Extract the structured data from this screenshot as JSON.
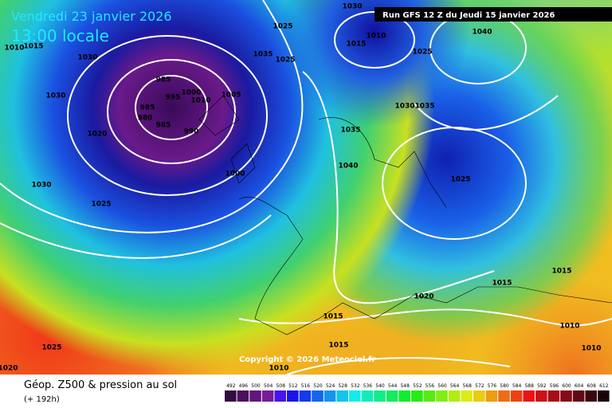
{
  "header": {
    "date": "Vendredi 23 janvier 2026",
    "local_time": "13:00 locale",
    "run": "Run GFS 12 Z du Jeudi 15 janvier 2026",
    "copyright": "Copyright © 2026 Meteociel.fr"
  },
  "footer": {
    "title": "Géop. Z500 & pression au sol",
    "lead": "(+ 192h)"
  },
  "legend": {
    "values": [
      492,
      496,
      500,
      504,
      508,
      512,
      516,
      520,
      524,
      528,
      532,
      536,
      540,
      544,
      548,
      552,
      556,
      560,
      564,
      568,
      572,
      576,
      580,
      584,
      588,
      592,
      596,
      600,
      604,
      608,
      612
    ]
  },
  "isobar_labels": [
    "1025",
    "1030",
    "1010",
    "1015",
    "1040",
    "1025",
    "1035",
    "1025",
    "1030",
    "1010",
    "1015",
    "985",
    "995",
    "1000",
    "1010",
    "985",
    "980",
    "985",
    "990",
    "1005",
    "1030",
    "1020",
    "1035",
    "1030",
    "1035",
    "1040",
    "1000",
    "1030",
    "1025",
    "1025",
    "1015",
    "1015",
    "1020",
    "1015",
    "1015",
    "1010",
    "1010",
    "1025",
    "1020",
    "1010"
  ]
}
